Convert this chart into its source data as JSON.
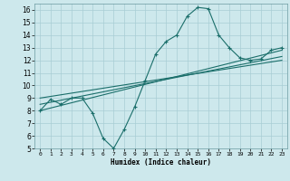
{
  "xlabel": "Humidex (Indice chaleur)",
  "bg_color": "#cde8ec",
  "grid_color": "#a8cdd4",
  "line_color": "#1a6e6a",
  "xlim": [
    -0.5,
    23.5
  ],
  "ylim": [
    5,
    16.5
  ],
  "xticks": [
    0,
    1,
    2,
    3,
    4,
    5,
    6,
    7,
    8,
    9,
    10,
    11,
    12,
    13,
    14,
    15,
    16,
    17,
    18,
    19,
    20,
    21,
    22,
    23
  ],
  "yticks": [
    5,
    6,
    7,
    8,
    9,
    10,
    11,
    12,
    13,
    14,
    15,
    16
  ],
  "curve1_x": [
    0,
    1,
    2,
    3,
    4,
    5,
    6,
    7,
    8,
    9,
    10,
    11,
    12,
    13,
    14,
    15,
    16,
    17,
    18,
    19,
    20,
    21,
    22,
    23
  ],
  "curve1_y": [
    8.0,
    8.9,
    8.5,
    9.0,
    9.0,
    7.8,
    5.8,
    5.0,
    6.5,
    8.3,
    10.4,
    12.5,
    13.5,
    14.0,
    15.5,
    16.2,
    16.1,
    14.0,
    13.0,
    12.2,
    12.0,
    12.1,
    12.8,
    13.0
  ],
  "curve2_x": [
    0,
    23
  ],
  "curve2_y": [
    8.0,
    12.8
  ],
  "curve3_x": [
    0,
    23
  ],
  "curve3_y": [
    8.5,
    12.3
  ],
  "curve4_x": [
    0,
    23
  ],
  "curve4_y": [
    9.0,
    12.0
  ]
}
